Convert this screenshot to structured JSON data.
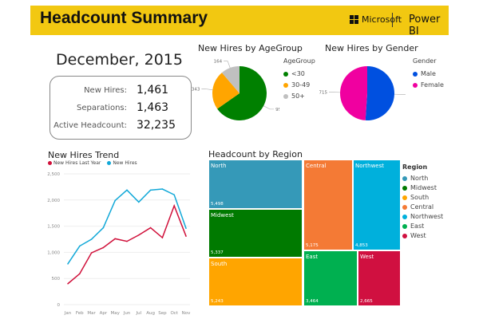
{
  "header": {
    "title": "Headcount Summary",
    "brand": "Microsoft",
    "product": "Power BI"
  },
  "kpi": {
    "month": "December, 2015",
    "items": [
      {
        "label": "New Hires:",
        "value": "1,461"
      },
      {
        "label": "Separations:",
        "value": "1,463"
      },
      {
        "label": "Active Headcount:",
        "value": "32,235"
      }
    ]
  },
  "chart_data": [
    {
      "type": "pie",
      "title": "New Hires by AgeGroup",
      "legend_title": "AgeGroup",
      "slices": [
        {
          "label": "<30",
          "value": 954,
          "color": "#008000"
        },
        {
          "label": "30-49",
          "value": 343,
          "color": "#ffa500"
        },
        {
          "label": "50+",
          "value": 164,
          "color": "#c0c0c0"
        }
      ]
    },
    {
      "type": "pie",
      "title": "New Hires by Gender",
      "legend_title": "Gender",
      "slices": [
        {
          "label": "Male",
          "value": 746,
          "color": "#0050e0"
        },
        {
          "label": "Female",
          "value": 715,
          "color": "#f000a0"
        }
      ]
    },
    {
      "type": "line",
      "title": "New Hires Trend",
      "categories": [
        "Jan",
        "Feb",
        "Mar",
        "Apr",
        "May",
        "Jun",
        "Jul",
        "Aug",
        "Sep",
        "Oct",
        "Nov"
      ],
      "ylim": [
        0,
        2500
      ],
      "yticks": [
        "0",
        "500",
        "1,000",
        "1,500",
        "2,000",
        "2,500"
      ],
      "grid": true,
      "legend": "top-left",
      "series": [
        {
          "name": "New Hires Last Year",
          "color": "#d0103a",
          "values": [
            400,
            590,
            990,
            1090,
            1260,
            1210,
            1330,
            1470,
            1280,
            1890,
            1310
          ]
        },
        {
          "name": "New Hires",
          "color": "#11a8d8",
          "values": [
            780,
            1120,
            1250,
            1470,
            1990,
            2190,
            1960,
            2190,
            2210,
            2100,
            1460
          ]
        }
      ]
    },
    {
      "type": "treemap",
      "title": "Headcount by Region",
      "legend_title": "Region",
      "items": [
        {
          "label": "North",
          "value": 5498,
          "display": "5,498",
          "color": "#3599b8"
        },
        {
          "label": "Midwest",
          "value": 5337,
          "display": "5,337",
          "color": "#007a00"
        },
        {
          "label": "South",
          "value": 5243,
          "display": "5,243",
          "color": "#ffa500"
        },
        {
          "label": "Central",
          "value": 5175,
          "display": "5,175",
          "color": "#f47a35"
        },
        {
          "label": "Northwest",
          "value": 4853,
          "display": "4,853",
          "color": "#00b0dc"
        },
        {
          "label": "East",
          "value": 3464,
          "display": "3,464",
          "color": "#00b050"
        },
        {
          "label": "West",
          "value": 2665,
          "display": "2,665",
          "color": "#d01040"
        }
      ]
    }
  ]
}
